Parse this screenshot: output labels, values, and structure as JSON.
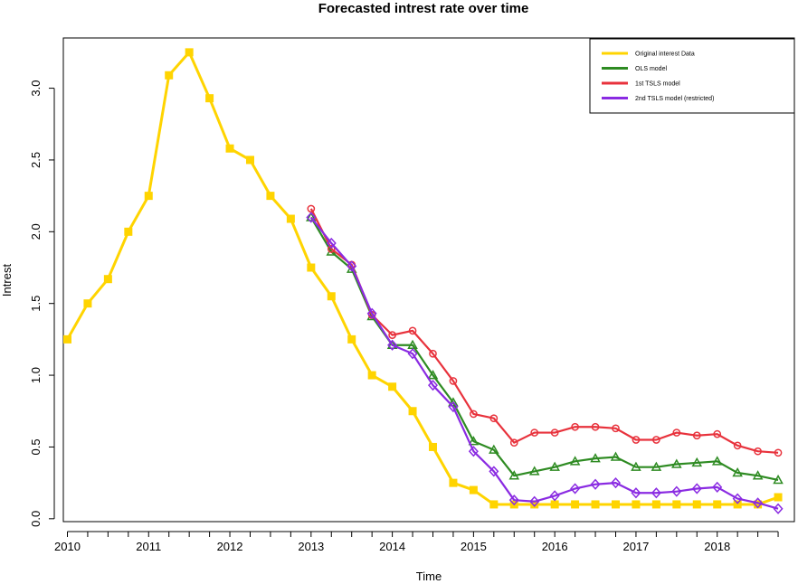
{
  "chart_data": {
    "type": "line",
    "title": "Forecasted intrest rate over time",
    "xlabel": "Time",
    "ylabel": "Intrest",
    "xlim": [
      2009.95,
      2018.95
    ],
    "ylim": [
      -0.02,
      3.35
    ],
    "x_ticks": [
      2010,
      2011,
      2012,
      2013,
      2014,
      2015,
      2016,
      2017,
      2018
    ],
    "y_ticks": [
      "0.0",
      "0.5",
      "1.0",
      "1.5",
      "2.0",
      "2.5",
      "3.0"
    ],
    "legend_position": "top-right",
    "series": [
      {
        "name": "Original interest Data",
        "color": "#FFD400",
        "marker": "square",
        "x": [
          2010,
          2010.25,
          2010.5,
          2010.75,
          2011,
          2011.25,
          2011.5,
          2011.75,
          2012,
          2012.25,
          2012.5,
          2012.75,
          2013,
          2013.25,
          2013.5,
          2013.75,
          2014,
          2014.25,
          2014.5,
          2014.75,
          2015,
          2015.25,
          2015.5,
          2015.75,
          2016,
          2016.25,
          2016.5,
          2016.75,
          2017,
          2017.25,
          2017.5,
          2017.75,
          2018,
          2018.25,
          2018.5,
          2018.75
        ],
        "values": [
          1.25,
          1.5,
          1.67,
          2.0,
          2.25,
          3.09,
          3.25,
          2.93,
          2.58,
          2.5,
          2.25,
          2.09,
          1.75,
          1.55,
          1.25,
          1.0,
          0.92,
          0.75,
          0.5,
          0.25,
          0.2,
          0.1,
          0.1,
          0.1,
          0.1,
          0.1,
          0.1,
          0.1,
          0.1,
          0.1,
          0.1,
          0.1,
          0.1,
          0.1,
          0.1,
          0.15
        ]
      },
      {
        "name": "OLS model",
        "color": "#2E8B22",
        "marker": "triangle",
        "x": [
          2013,
          2013.25,
          2013.5,
          2013.75,
          2014,
          2014.25,
          2014.5,
          2014.75,
          2015,
          2015.25,
          2015.5,
          2015.75,
          2016,
          2016.25,
          2016.5,
          2016.75,
          2017,
          2017.25,
          2017.5,
          2017.75,
          2018,
          2018.25,
          2018.5,
          2018.75
        ],
        "values": [
          2.1,
          1.86,
          1.74,
          1.41,
          1.21,
          1.21,
          1.0,
          0.81,
          0.54,
          0.48,
          0.3,
          0.33,
          0.36,
          0.4,
          0.42,
          0.43,
          0.36,
          0.36,
          0.38,
          0.39,
          0.4,
          0.32,
          0.3,
          0.27
        ]
      },
      {
        "name": "1st TSLS model",
        "color": "#E8323C",
        "marker": "circle",
        "x": [
          2013,
          2013.25,
          2013.5,
          2013.75,
          2014,
          2014.25,
          2014.5,
          2014.75,
          2015,
          2015.25,
          2015.5,
          2015.75,
          2016,
          2016.25,
          2016.5,
          2016.75,
          2017,
          2017.25,
          2017.5,
          2017.75,
          2018,
          2018.25,
          2018.5,
          2018.75
        ],
        "values": [
          2.16,
          1.88,
          1.77,
          1.42,
          1.28,
          1.31,
          1.15,
          0.96,
          0.73,
          0.7,
          0.53,
          0.6,
          0.6,
          0.64,
          0.64,
          0.63,
          0.55,
          0.55,
          0.6,
          0.58,
          0.59,
          0.51,
          0.47,
          0.46
        ]
      },
      {
        "name": "2nd TSLS model (restricted)",
        "color": "#8A2BE2",
        "marker": "diamond",
        "x": [
          2013,
          2013.25,
          2013.5,
          2013.75,
          2014,
          2014.25,
          2014.5,
          2014.75,
          2015,
          2015.25,
          2015.5,
          2015.75,
          2016,
          2016.25,
          2016.5,
          2016.75,
          2017,
          2017.25,
          2017.5,
          2017.75,
          2018,
          2018.25,
          2018.5,
          2018.75
        ],
        "values": [
          2.1,
          1.92,
          1.76,
          1.43,
          1.21,
          1.15,
          0.93,
          0.78,
          0.47,
          0.33,
          0.13,
          0.12,
          0.16,
          0.21,
          0.24,
          0.25,
          0.18,
          0.18,
          0.19,
          0.21,
          0.22,
          0.14,
          0.11,
          0.07
        ]
      }
    ]
  }
}
